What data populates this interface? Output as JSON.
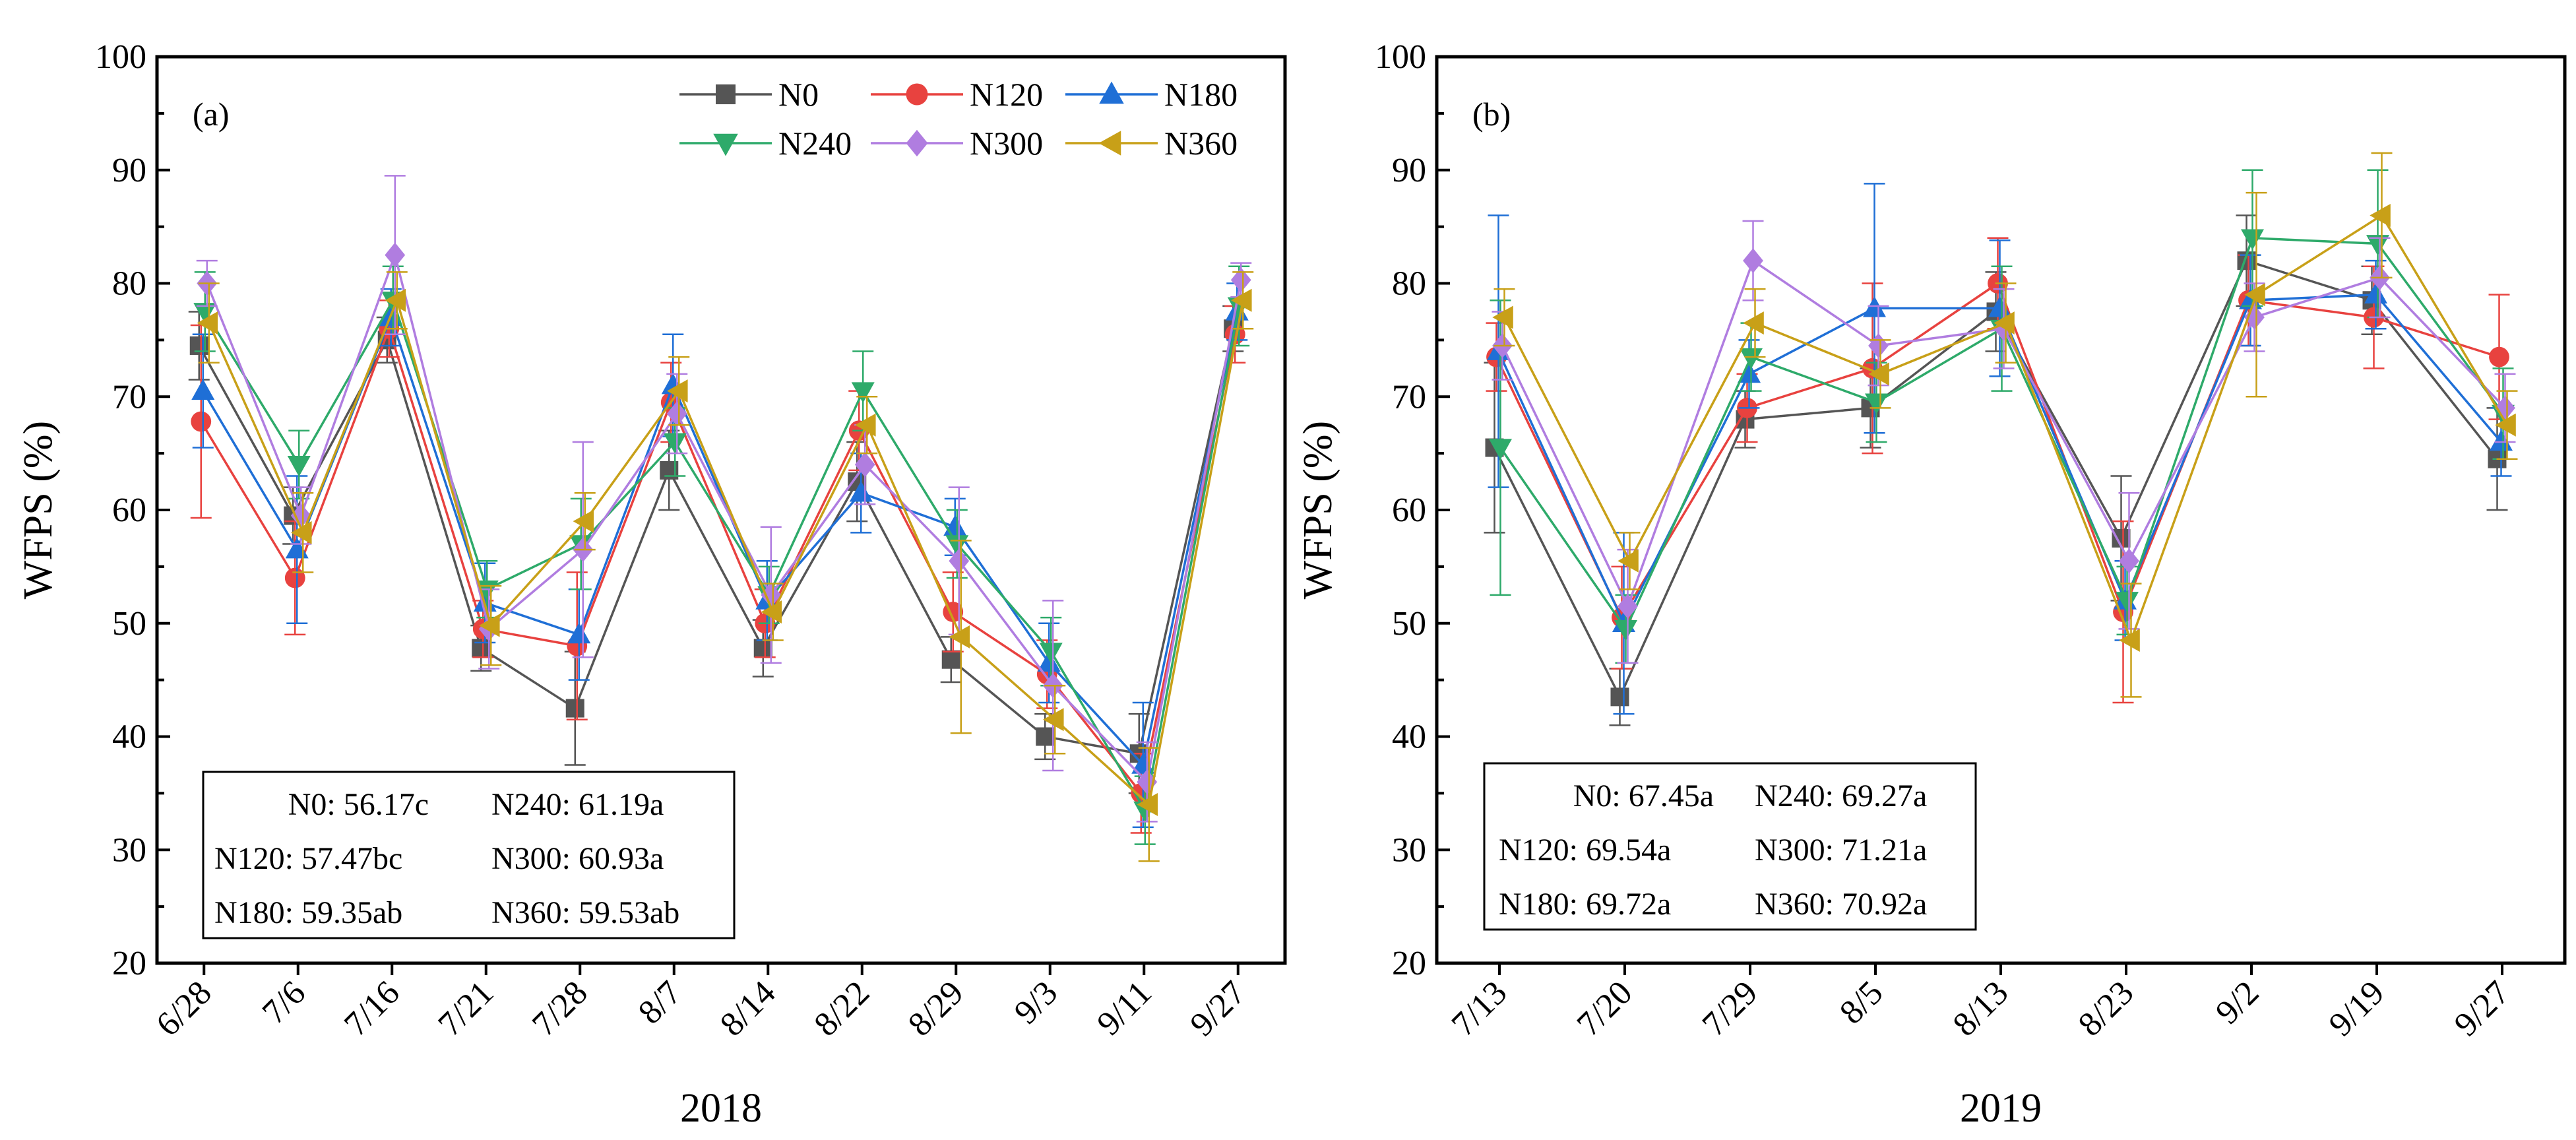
{
  "chart_data": [
    {
      "type": "line",
      "panel_label": "(a)",
      "xlabel": "2018",
      "ylabel": "WFPS (%)",
      "ylim": [
        20,
        100
      ],
      "yticks": [
        "20",
        "30",
        "40",
        "50",
        "60",
        "70",
        "80",
        "90",
        "100"
      ],
      "categories": [
        "6/28",
        "7/6",
        "7/16",
        "7/21",
        "7/28",
        "8/7",
        "8/14",
        "8/22",
        "8/29",
        "9/3",
        "9/11",
        "9/27"
      ],
      "series": [
        {
          "name": "N0",
          "color": "#555555",
          "marker": "square",
          "values": [
            74.5,
            59.5,
            75.0,
            47.8,
            42.5,
            63.5,
            47.8,
            62.5,
            46.8,
            40.0,
            38.5,
            76.0
          ],
          "errors": [
            3.0,
            2.5,
            2.0,
            2.0,
            5.0,
            3.5,
            2.5,
            3.5,
            2.0,
            2.0,
            3.5,
            2.0
          ]
        },
        {
          "name": "N120",
          "color": "#e8423f",
          "marker": "circle",
          "values": [
            67.8,
            54.0,
            76.0,
            49.5,
            48.0,
            69.5,
            50.0,
            67.0,
            51.0,
            45.5,
            35.0,
            75.5
          ],
          "errors": [
            8.5,
            5.0,
            2.5,
            2.5,
            6.5,
            3.5,
            3.0,
            3.5,
            3.5,
            3.0,
            3.5,
            2.5
          ]
        },
        {
          "name": "N180",
          "color": "#1f6fd6",
          "marker": "triangle-up",
          "values": [
            70.5,
            56.5,
            77.0,
            51.8,
            49.0,
            71.0,
            52.0,
            61.5,
            58.5,
            46.5,
            37.5,
            77.5
          ],
          "errors": [
            5.0,
            6.5,
            2.5,
            3.5,
            4.0,
            4.5,
            3.5,
            3.5,
            2.5,
            3.5,
            5.5,
            2.5
          ]
        },
        {
          "name": "N240",
          "color": "#2eaa6a",
          "marker": "triangle-down",
          "values": [
            77.5,
            64.0,
            78.5,
            53.0,
            57.0,
            66.0,
            52.5,
            70.5,
            57.0,
            47.5,
            33.5,
            78.0
          ],
          "errors": [
            3.5,
            3.0,
            3.0,
            2.5,
            4.0,
            3.0,
            2.5,
            3.5,
            3.0,
            3.0,
            3.0,
            3.5
          ]
        },
        {
          "name": "N300",
          "color": "#b07de0",
          "marker": "diamond",
          "values": [
            80.0,
            59.5,
            82.5,
            49.5,
            56.5,
            68.5,
            52.5,
            64.0,
            55.5,
            44.5,
            36.0,
            80.3
          ],
          "errors": [
            2.0,
            2.5,
            7.0,
            3.5,
            9.5,
            3.5,
            6.0,
            3.5,
            6.5,
            7.5,
            3.5,
            1.5
          ]
        },
        {
          "name": "N360",
          "color": "#c8a018",
          "marker": "triangle-left",
          "values": [
            76.5,
            58.0,
            78.5,
            49.8,
            59.0,
            70.5,
            51.0,
            67.5,
            48.8,
            41.5,
            34.0,
            78.5
          ],
          "errors": [
            3.5,
            3.5,
            2.5,
            3.5,
            2.5,
            3.0,
            2.5,
            2.5,
            8.5,
            3.0,
            5.0,
            2.5
          ]
        }
      ],
      "legend_position": "top-right",
      "stats_box": [
        [
          "N0: 56.17c",
          "N240: 61.19a"
        ],
        [
          "N120: 57.47bc",
          "N300: 60.93a"
        ],
        [
          "N180: 59.35ab",
          "N360: 59.53ab"
        ]
      ]
    },
    {
      "type": "line",
      "panel_label": "(b)",
      "xlabel": "2019",
      "ylabel": "WFPS (%)",
      "ylim": [
        20,
        100
      ],
      "yticks": [
        "20",
        "30",
        "40",
        "50",
        "60",
        "70",
        "80",
        "90",
        "100"
      ],
      "categories": [
        "7/13",
        "7/20",
        "7/29",
        "8/5",
        "8/13",
        "8/23",
        "9/2",
        "9/19",
        "9/27"
      ],
      "series": [
        {
          "name": "N0",
          "color": "#555555",
          "marker": "square",
          "values": [
            65.5,
            43.5,
            68.0,
            69.0,
            77.5,
            57.5,
            82.0,
            78.5,
            64.5
          ],
          "errors": [
            7.5,
            2.5,
            2.5,
            3.5,
            3.5,
            5.5,
            4.0,
            3.0,
            4.5
          ]
        },
        {
          "name": "N120",
          "color": "#e8423f",
          "marker": "circle",
          "values": [
            73.5,
            50.5,
            69.0,
            72.5,
            80.0,
            51.0,
            78.5,
            77.0,
            73.5
          ],
          "errors": [
            3.0,
            4.5,
            3.0,
            7.5,
            4.0,
            8.0,
            4.0,
            4.5,
            5.5
          ]
        },
        {
          "name": "N180",
          "color": "#1f6fd6",
          "marker": "triangle-up",
          "values": [
            74.0,
            50.0,
            72.0,
            77.8,
            77.8,
            52.0,
            78.5,
            79.0,
            66.0
          ],
          "errors": [
            12.0,
            8.0,
            3.0,
            11.0,
            6.0,
            3.5,
            4.0,
            3.0,
            3.0
          ]
        },
        {
          "name": "N240",
          "color": "#2eaa6a",
          "marker": "triangle-down",
          "values": [
            65.5,
            49.5,
            73.5,
            69.5,
            76.0,
            52.0,
            84.0,
            83.5,
            68.5
          ],
          "errors": [
            13.0,
            3.0,
            3.0,
            3.5,
            5.5,
            3.0,
            6.0,
            6.5,
            4.0
          ]
        },
        {
          "name": "N300",
          "color": "#b07de0",
          "marker": "diamond",
          "values": [
            74.5,
            51.5,
            82.0,
            74.5,
            76.0,
            55.5,
            77.0,
            80.5,
            69.0
          ],
          "errors": [
            3.0,
            5.0,
            3.5,
            3.5,
            3.5,
            6.0,
            3.0,
            3.5,
            3.0
          ]
        },
        {
          "name": "N360",
          "color": "#c8a018",
          "marker": "triangle-left",
          "values": [
            77.0,
            55.5,
            76.5,
            72.0,
            76.5,
            48.5,
            79.0,
            86.0,
            67.5
          ],
          "errors": [
            2.5,
            2.5,
            3.0,
            3.0,
            3.5,
            5.0,
            9.0,
            5.5,
            3.0
          ]
        }
      ],
      "stats_box": [
        [
          "N0: 67.45a",
          "N240: 69.27a"
        ],
        [
          "N120: 69.54a",
          "N300: 71.21a"
        ],
        [
          "N180: 69.72a",
          "N360: 70.92a"
        ]
      ]
    }
  ]
}
